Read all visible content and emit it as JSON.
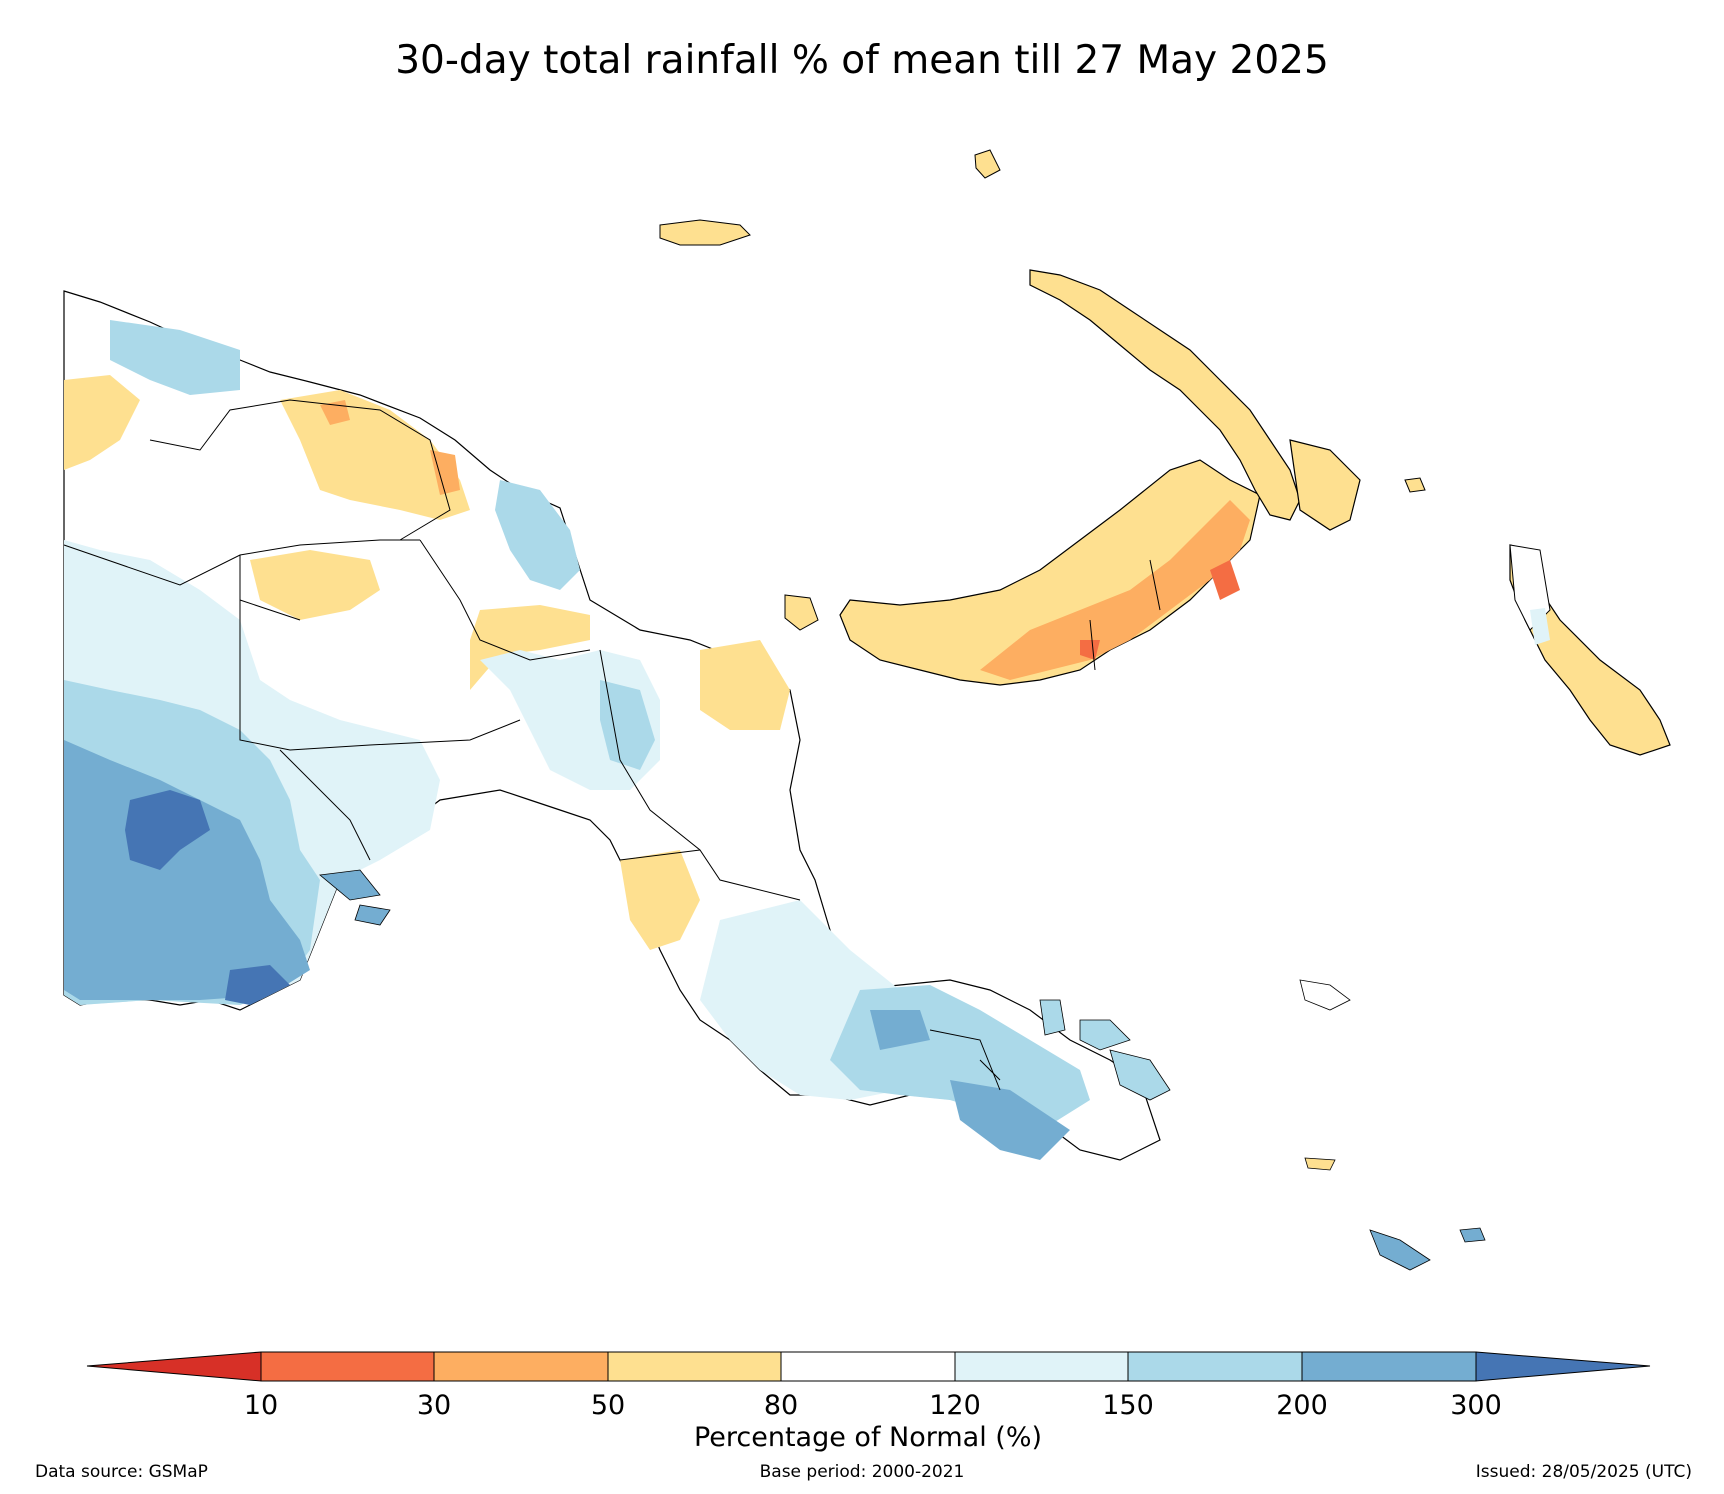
{
  "title": "30-day total rainfall % of mean till 27 May 2025",
  "legend": {
    "label": "Percentage of Normal (%)",
    "ticks": [
      "10",
      "30",
      "50",
      "80",
      "120",
      "150",
      "200",
      "300"
    ],
    "colors": [
      "#d73027",
      "#f46d43",
      "#fdae61",
      "#fee090",
      "#ffffff",
      "#e0f3f8",
      "#abd9e9",
      "#74add1",
      "#4575b4"
    ]
  },
  "footer": {
    "source": "Data source: GSMaP",
    "base_period": "Base period: 2000-2021",
    "issued": "Issued: 28/05/2025 (UTC)"
  },
  "map": {
    "region": "Papua New Guinea",
    "rainfall_classes": {
      "below_10": "#d73027",
      "10_30": "#f46d43",
      "30_50": "#fdae61",
      "50_80": "#fee090",
      "80_120": "#ffffff",
      "120_150": "#e0f3f8",
      "150_200": "#abd9e9",
      "200_300": "#74add1",
      "above_300": "#4575b4"
    }
  }
}
